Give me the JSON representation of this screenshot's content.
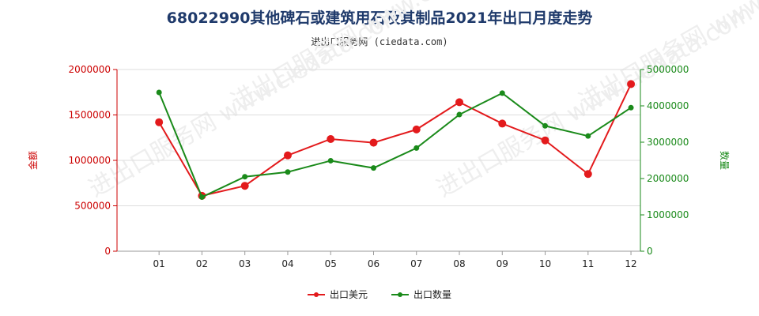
{
  "title": "68022990其他碑石或建筑用石及其制品2021年出口月度走势",
  "subtitle": "进出口服务网 (ciedata.com)",
  "watermark": "进出口服务网 www.ciedata.com",
  "colors": {
    "amount": "#e31a1c",
    "quantity": "#1a8a1a",
    "axis_left": "#cc0000",
    "axis_right": "#1a8a1a"
  },
  "chart_data": {
    "type": "line",
    "categories": [
      "01",
      "02",
      "03",
      "04",
      "05",
      "06",
      "07",
      "08",
      "09",
      "10",
      "11",
      "12"
    ],
    "left_axis": {
      "label": "金额",
      "ticks": [
        "0",
        "500000",
        "1000000",
        "1500000",
        "2000000"
      ],
      "ylim": [
        0,
        2000000
      ]
    },
    "right_axis": {
      "label": "数量",
      "ticks": [
        "0",
        "1000000",
        "2000000",
        "3000000",
        "4000000",
        "5000000"
      ],
      "ylim": [
        0,
        5000000
      ]
    },
    "series": [
      {
        "name": "出口美元",
        "axis": "left",
        "values": [
          1420000,
          610000,
          720000,
          1055000,
          1235000,
          1195000,
          1340000,
          1640000,
          1405000,
          1220000,
          850000,
          1840000
        ]
      },
      {
        "name": "出口数量",
        "axis": "right",
        "values": [
          4370000,
          1490000,
          2050000,
          2180000,
          2490000,
          2290000,
          2840000,
          3760000,
          4350000,
          3450000,
          3170000,
          3950000
        ]
      }
    ],
    "grid": true,
    "legend_position": "bottom"
  }
}
